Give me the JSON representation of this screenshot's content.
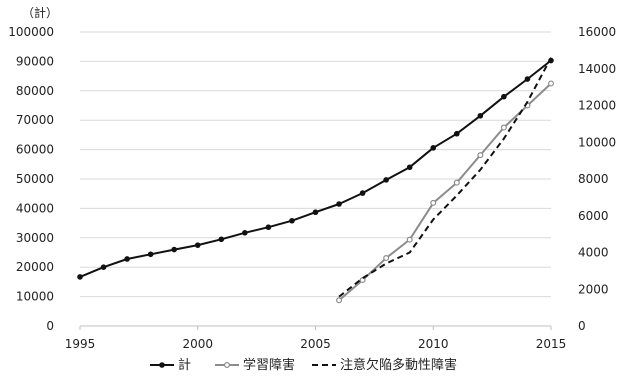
{
  "chart_data": {
    "type": "line",
    "y_unit_label": "（計）",
    "x": [
      1995,
      1996,
      1997,
      1998,
      1999,
      2000,
      2001,
      2002,
      2003,
      2004,
      2005,
      2006,
      2007,
      2008,
      2009,
      2010,
      2011,
      2012,
      2013,
      2014,
      2015
    ],
    "xlim": [
      1995,
      2015
    ],
    "x_ticks": [
      "1995",
      "2000",
      "2005",
      "2010",
      "2015"
    ],
    "ylim_left": [
      0,
      100000
    ],
    "y_ticks_left": [
      "0",
      "10000",
      "20000",
      "30000",
      "40000",
      "50000",
      "60000",
      "70000",
      "80000",
      "90000",
      "100000"
    ],
    "ylim_right": [
      0,
      16000
    ],
    "y_ticks_right": [
      "0",
      "2000",
      "4000",
      "6000",
      "8000",
      "10000",
      "12000",
      "14000",
      "16000"
    ],
    "grid": "horizontal",
    "legend_position": "bottom",
    "series": [
      {
        "name": "計",
        "axis": "left",
        "style": "solid-marker",
        "color": "#111111",
        "values": [
          16700,
          20000,
          22800,
          24400,
          26000,
          27500,
          29500,
          31700,
          33600,
          35800,
          38700,
          41500,
          45200,
          49700,
          54000,
          60600,
          65400,
          71500,
          78000,
          84000,
          90300
        ]
      },
      {
        "name": "学習障害",
        "axis": "right",
        "style": "gray-open-marker",
        "color": "#8c8c8c",
        "values": [
          null,
          null,
          null,
          null,
          null,
          null,
          null,
          null,
          null,
          null,
          null,
          1400,
          2500,
          3700,
          4700,
          6700,
          7800,
          9300,
          10800,
          12000,
          13200
        ]
      },
      {
        "name": "注意欠陥多動性障害",
        "axis": "right",
        "style": "dashed",
        "color": "#111111",
        "values": [
          null,
          null,
          null,
          null,
          null,
          null,
          null,
          null,
          null,
          null,
          null,
          1600,
          2600,
          3400,
          4000,
          5800,
          7100,
          8500,
          10200,
          12200,
          14600
        ]
      }
    ]
  }
}
